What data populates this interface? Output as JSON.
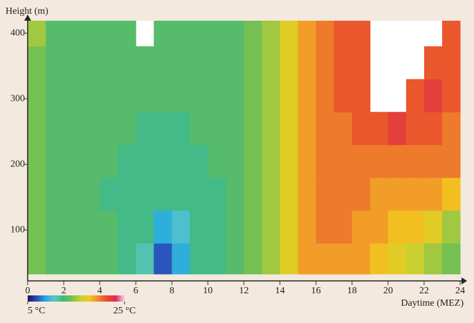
{
  "chart_data": {
    "type": "heatmap",
    "ylabel": "Height (m)",
    "xlabel": "Daytime (MEZ)",
    "xbins": [
      0,
      1,
      2,
      3,
      4,
      5,
      6,
      7,
      8,
      9,
      10,
      11,
      12,
      13,
      14,
      15,
      16,
      17,
      18,
      19,
      20,
      21,
      22,
      23,
      24
    ],
    "ybins": [
      33,
      80,
      130,
      180,
      230,
      280,
      330,
      380,
      419
    ],
    "values": [
      [
        14,
        13,
        13,
        13,
        13,
        12,
        11,
        7,
        9,
        12,
        12,
        13,
        14,
        15,
        17,
        19,
        19,
        19,
        19,
        18,
        17,
        16,
        15,
        14
      ],
      [
        14,
        13,
        13,
        13,
        13,
        12,
        12,
        9,
        10,
        12,
        12,
        13,
        14,
        15,
        17,
        19,
        20,
        20,
        19,
        19,
        18,
        18,
        17,
        15
      ],
      [
        14,
        13,
        13,
        13,
        12,
        12,
        12,
        12,
        12,
        12,
        12,
        13,
        14,
        15,
        17,
        19,
        20,
        20,
        20,
        19,
        19,
        19,
        19,
        18
      ],
      [
        14,
        13,
        13,
        13,
        13,
        12,
        12,
        12,
        12,
        12,
        13,
        13,
        14,
        15,
        17,
        19,
        20,
        20,
        20,
        20,
        20,
        20,
        20,
        20
      ],
      [
        14,
        13,
        13,
        13,
        13,
        13,
        12,
        12,
        12,
        13,
        13,
        13,
        14,
        15,
        17,
        19,
        20,
        20,
        21,
        21,
        22,
        21,
        21,
        20
      ],
      [
        14,
        13,
        13,
        13,
        13,
        13,
        13,
        13,
        13,
        13,
        13,
        13,
        14,
        15,
        17,
        19,
        20,
        21,
        21,
        null,
        null,
        21,
        22,
        21
      ],
      [
        14,
        13,
        13,
        13,
        13,
        13,
        13,
        13,
        13,
        13,
        13,
        13,
        14,
        15,
        17,
        19,
        20,
        21,
        21,
        null,
        null,
        null,
        21,
        21
      ],
      [
        15,
        13,
        13,
        13,
        13,
        13,
        null,
        13,
        13,
        13,
        13,
        13,
        14,
        15,
        17,
        19,
        20,
        21,
        21,
        null,
        null,
        null,
        null,
        21
      ]
    ],
    "xlim": [
      0,
      24
    ],
    "xticks": [
      0,
      2,
      4,
      6,
      8,
      10,
      12,
      14,
      16,
      18,
      20,
      22,
      24
    ],
    "ylim": [
      33,
      419
    ],
    "yticks": [
      100,
      200,
      300,
      400
    ],
    "clim": [
      5,
      25
    ],
    "cticks": [
      {
        "value": 5,
        "label": "5 °C"
      },
      {
        "value": 25,
        "label": "25 °C"
      }
    ],
    "colormap": [
      "#16165e",
      "#2a4cb8",
      "#23a8e0",
      "#5cc6c6",
      "#3fb87c",
      "#78c050",
      "#c8d030",
      "#f2c81e",
      "#f08a2c",
      "#e84a2c",
      "#e02a5a",
      "#f0d8ec"
    ],
    "null_color": "#ffffff"
  }
}
